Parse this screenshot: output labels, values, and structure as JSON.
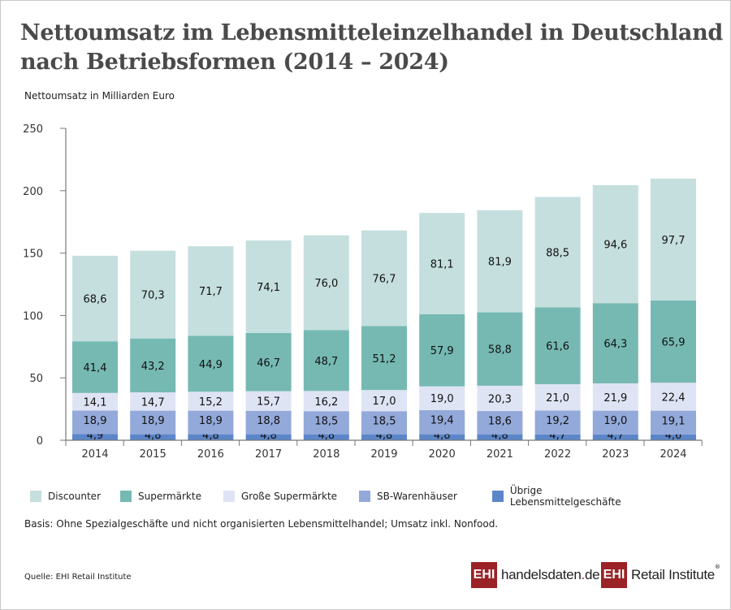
{
  "title_line1": "Nettoumsatz im Lebensmitteleinzelhandel in Deutschland",
  "title_line2": "nach Betriebsformen (2014 – 2024)",
  "note": "Basis: Ohne Spezialgeschäfte und nicht organisierten Lebensmittelhandel; Umsatz inkl. Nonfood.",
  "source": "Quelle: EHI Retail Institute",
  "logos": {
    "ehi": "EHI",
    "handelsdaten_a": "handelsdaten",
    "handelsdaten_dot": ".",
    "handelsdaten_b": "de",
    "retail": "Retail Institute",
    "reg": "®"
  },
  "chart_data": {
    "type": "bar",
    "stacked": true,
    "title": "Nettoumsatz im Lebensmitteleinzelhandel in Deutschland nach Betriebsformen (2014 – 2024)",
    "ylabel": "Nettoumsatz in Milliarden Euro",
    "xlabel": "",
    "ylim": [
      0,
      250
    ],
    "yticks": [
      0,
      50,
      100,
      150,
      200,
      250
    ],
    "grid": false,
    "legend_position": "bottom",
    "categories": [
      "2014",
      "2015",
      "2016",
      "2017",
      "2018",
      "2019",
      "2020",
      "2021",
      "2022",
      "2023",
      "2024"
    ],
    "series": [
      {
        "name": "Übrige Lebensmittelgeschäfte",
        "color": "#5b86c9",
        "values": [
          4.9,
          4.8,
          4.8,
          4.8,
          4.8,
          4.8,
          4.8,
          4.8,
          4.7,
          4.7,
          4.6
        ]
      },
      {
        "name": "SB-Warenhäuser",
        "color": "#93a9da",
        "values": [
          18.9,
          18.9,
          18.9,
          18.8,
          18.5,
          18.5,
          19.4,
          18.6,
          19.2,
          19.0,
          19.1
        ]
      },
      {
        "name": "Große Supermärkte",
        "color": "#dfe4f5",
        "values": [
          14.1,
          14.7,
          15.2,
          15.7,
          16.2,
          17.0,
          19.0,
          20.3,
          21.0,
          21.9,
          22.4
        ]
      },
      {
        "name": "Supermärkte",
        "color": "#76b9b3",
        "values": [
          41.4,
          43.2,
          44.9,
          46.7,
          48.7,
          51.2,
          57.9,
          58.8,
          61.6,
          64.3,
          65.9
        ]
      },
      {
        "name": "Discounter",
        "color": "#c5dfde",
        "values": [
          68.6,
          70.3,
          71.7,
          74.1,
          76.0,
          76.7,
          81.1,
          81.9,
          88.5,
          94.6,
          97.7
        ]
      }
    ],
    "legend_order": [
      "Discounter",
      "Supermärkte",
      "Große Supermärkte",
      "SB-Warenhäuser",
      "Übrige Lebensmittelgeschäfte"
    ]
  }
}
